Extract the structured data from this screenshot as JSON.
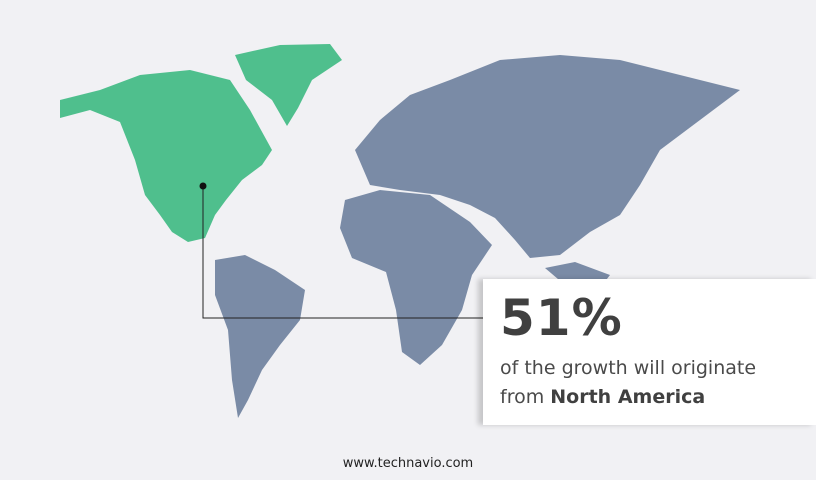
{
  "colors": {
    "highlight_region": "#4fbf8d",
    "other_regions": "#7a8ba6",
    "background": "#f1f1f4",
    "text": "#404040"
  },
  "highlighted_region": "North America",
  "callout": {
    "percent": "51%",
    "line1": "of the growth will originate",
    "line2_prefix": "from ",
    "line2_region": "North America"
  },
  "footer": {
    "website": "www.technavio.com"
  }
}
